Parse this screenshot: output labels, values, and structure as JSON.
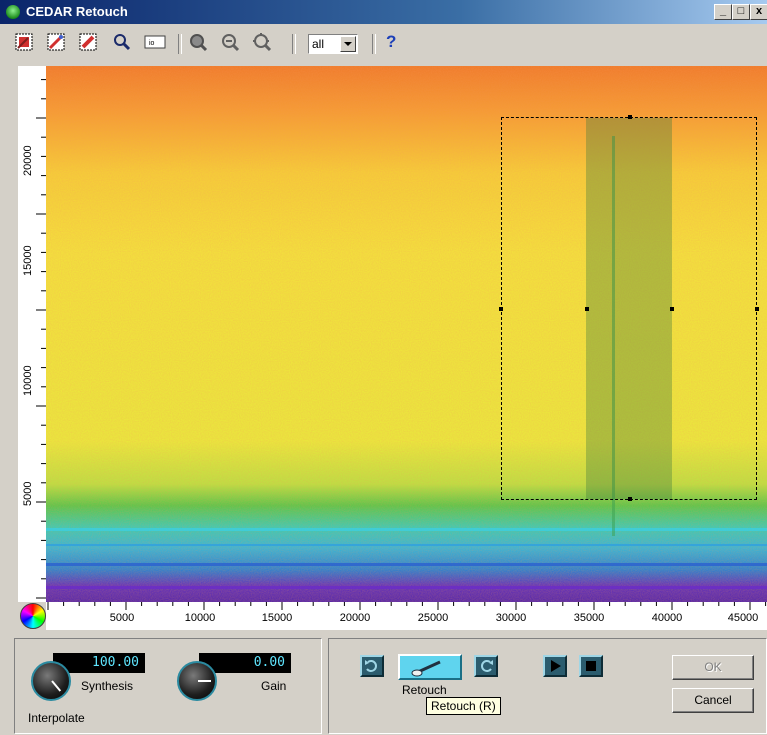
{
  "window": {
    "title": "CEDAR Retouch",
    "minimize": "_",
    "maximize": "□",
    "close": "x"
  },
  "toolbar": {
    "tools": [
      "select-box-tool-icon",
      "select-freehand-tool-icon",
      "select-brush-tool-icon",
      "zoom-tool-icon",
      "display-settings-icon",
      "zoom-out-full-icon",
      "zoom-out-icon",
      "zoom-fit-icon"
    ],
    "channel_select": {
      "value": "all"
    },
    "help": "?"
  },
  "spectrogram": {
    "y_ticks": [
      "20000",
      "15000",
      "10000",
      "5000"
    ],
    "x_ticks": [
      "5000",
      "10000",
      "15000",
      "20000",
      "25000",
      "30000",
      "35000",
      "40000",
      "45000"
    ],
    "colors": {
      "low": "#4b2cc9",
      "mid": "#29c7e6",
      "high": "#f0e430",
      "top": "#f0822a"
    }
  },
  "controls": {
    "synthesis": {
      "value": "100.00",
      "label": "Synthesis"
    },
    "gain": {
      "value": "0.00",
      "label": "Gain"
    },
    "mode_label": "Interpolate"
  },
  "transport": {
    "retouch_label": "Retouch",
    "tooltip": "Retouch (R)",
    "ok": "OK",
    "cancel": "Cancel"
  }
}
